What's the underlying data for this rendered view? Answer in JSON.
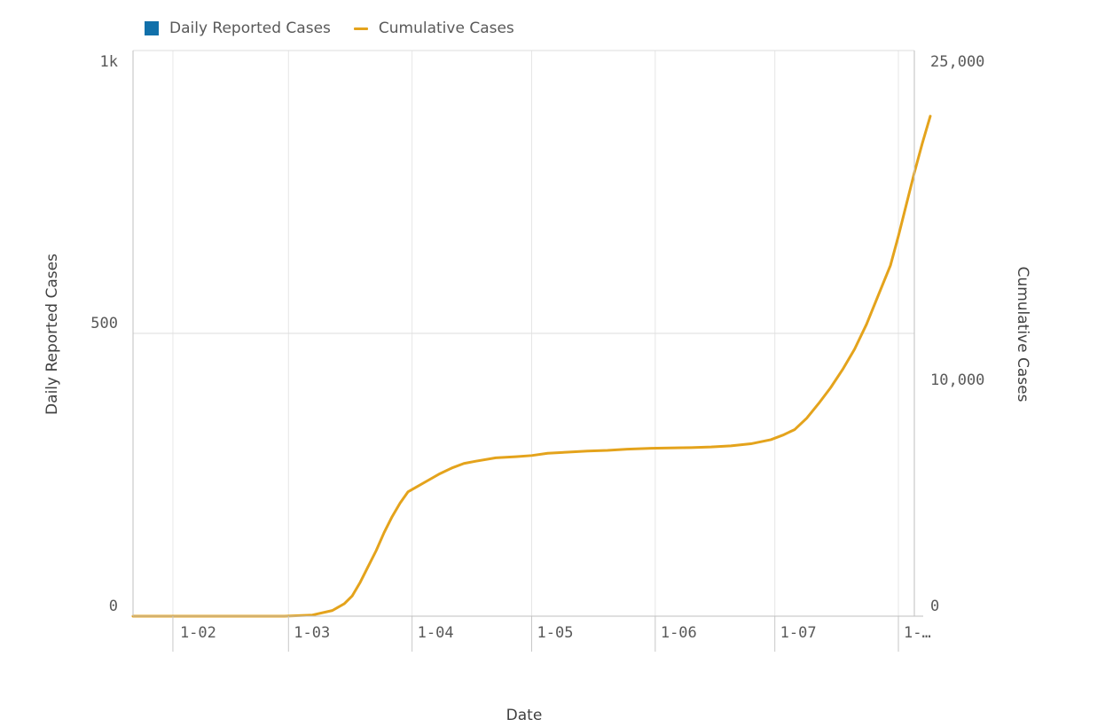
{
  "chart_data": {
    "type": "bar",
    "combo": "bar + line (dual axis)",
    "xlabel": "Date",
    "ylabel_left": "Daily Reported Cases",
    "ylabel_right": "Cumulative Cases",
    "left_axis": {
      "range": [
        0,
        1000
      ],
      "ticks": [
        0,
        500,
        1000
      ],
      "tick_labels": [
        "0",
        "500",
        "1k"
      ]
    },
    "right_axis": {
      "range": [
        0,
        25000
      ],
      "ticks": [
        0,
        10000,
        25000
      ],
      "tick_labels": [
        "0",
        "10,000",
        "25,000"
      ]
    },
    "x_range": [
      "2020-01-22",
      "2020-08-05"
    ],
    "x_ticks": [
      {
        "date": "2020-02-01",
        "label": "1-02"
      },
      {
        "date": "2020-03-01",
        "label": "1-03"
      },
      {
        "date": "2020-04-01",
        "label": "1-04"
      },
      {
        "date": "2020-05-01",
        "label": "1-05"
      },
      {
        "date": "2020-06-01",
        "label": "1-06"
      },
      {
        "date": "2020-07-01",
        "label": "1-07"
      },
      {
        "date": "2020-08-01",
        "label": "1-…"
      }
    ],
    "grid": true,
    "legend_position": "top-left",
    "colors": {
      "daily": "#1170aa",
      "cumulative": "#e4a31c"
    },
    "series": [
      {
        "name": "Daily Reported Cases",
        "type": "bar",
        "axis": "left",
        "start_date": "2020-01-22",
        "values": [
          0,
          0,
          0,
          0,
          0,
          0,
          0,
          0,
          0,
          0,
          0,
          0,
          0,
          0,
          0,
          0,
          0,
          0,
          0,
          0,
          0,
          0,
          0,
          0,
          0,
          0,
          0,
          0,
          0,
          0,
          0,
          0,
          0,
          0,
          0,
          0,
          0,
          0,
          0,
          0,
          0,
          0,
          0,
          0,
          0,
          0,
          0,
          0,
          0,
          0,
          0,
          0,
          0,
          0,
          0,
          0,
          0,
          0,
          0,
          0,
          0,
          0,
          0,
          0,
          0,
          0,
          0,
          0,
          0,
          0,
          0,
          0,
          0,
          0,
          0,
          0,
          0,
          0,
          0,
          0,
          0,
          0,
          0,
          0,
          0,
          0,
          0,
          0,
          0,
          0,
          0,
          0,
          0,
          0,
          0,
          0,
          0,
          0,
          0,
          0,
          0,
          0,
          0,
          0,
          0,
          0,
          0,
          0,
          0,
          0,
          0,
          0,
          0,
          0,
          0,
          0,
          0,
          0,
          0,
          0,
          0,
          0,
          0,
          0,
          0,
          0,
          0,
          0,
          0,
          0,
          0,
          0,
          0,
          0,
          0,
          0,
          0,
          0,
          0,
          0,
          0,
          0,
          0,
          0,
          0,
          0,
          0,
          0,
          0,
          0,
          0,
          0,
          0,
          0,
          0,
          0,
          0,
          0,
          0,
          0,
          0,
          0,
          0,
          0,
          0,
          0,
          0,
          0,
          0,
          0,
          0,
          0,
          0,
          0,
          0,
          0,
          0,
          0,
          0,
          0,
          0,
          0,
          0,
          0,
          0,
          0,
          0,
          0,
          0,
          0,
          0,
          0,
          0,
          0,
          0,
          0,
          0
        ]
      },
      {
        "name": "Cumulative Cases",
        "type": "line",
        "axis": "right",
        "points": [
          [
            "2020-01-22",
            0
          ],
          [
            "2020-02-29",
            0
          ],
          [
            "2020-03-07",
            50
          ],
          [
            "2020-03-12",
            250
          ],
          [
            "2020-03-15",
            550
          ],
          [
            "2020-03-17",
            900
          ],
          [
            "2020-03-19",
            1500
          ],
          [
            "2020-03-21",
            2200
          ],
          [
            "2020-03-23",
            2900
          ],
          [
            "2020-03-25",
            3700
          ],
          [
            "2020-03-27",
            4400
          ],
          [
            "2020-03-29",
            5000
          ],
          [
            "2020-03-31",
            5500
          ],
          [
            "2020-04-02",
            5700
          ],
          [
            "2020-04-05",
            6000
          ],
          [
            "2020-04-08",
            6300
          ],
          [
            "2020-04-11",
            6550
          ],
          [
            "2020-04-14",
            6750
          ],
          [
            "2020-04-17",
            6850
          ],
          [
            "2020-04-22",
            7000
          ],
          [
            "2020-04-27",
            7050
          ],
          [
            "2020-05-01",
            7100
          ],
          [
            "2020-05-05",
            7200
          ],
          [
            "2020-05-10",
            7250
          ],
          [
            "2020-05-15",
            7300
          ],
          [
            "2020-05-20",
            7330
          ],
          [
            "2020-05-25",
            7380
          ],
          [
            "2020-05-31",
            7420
          ],
          [
            "2020-06-10",
            7450
          ],
          [
            "2020-06-15",
            7480
          ],
          [
            "2020-06-20",
            7530
          ],
          [
            "2020-06-25",
            7620
          ],
          [
            "2020-06-30",
            7800
          ],
          [
            "2020-07-03",
            8000
          ],
          [
            "2020-07-06",
            8250
          ],
          [
            "2020-07-09",
            8750
          ],
          [
            "2020-07-12",
            9400
          ],
          [
            "2020-07-15",
            10100
          ],
          [
            "2020-07-18",
            10900
          ],
          [
            "2020-07-21",
            11800
          ],
          [
            "2020-07-24",
            12900
          ],
          [
            "2020-07-27",
            14200
          ],
          [
            "2020-07-30",
            15500
          ],
          [
            "2020-08-01",
            16800
          ],
          [
            "2020-08-03",
            18200
          ],
          [
            "2020-08-05",
            19600
          ],
          [
            "2020-08-07",
            20900
          ],
          [
            "2020-08-09",
            22100
          ]
        ]
      }
    ]
  }
}
